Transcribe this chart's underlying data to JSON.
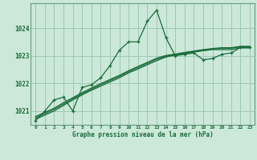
{
  "title": "Graphe pression niveau de la mer (hPa)",
  "background_color": "#cbe8d8",
  "grid_color": "#9dc9b4",
  "line_color": "#1a6b3a",
  "hours": [
    0,
    1,
    2,
    3,
    4,
    5,
    6,
    7,
    8,
    9,
    10,
    11,
    12,
    13,
    14,
    15,
    16,
    17,
    18,
    19,
    20,
    21,
    22,
    23
  ],
  "line_volatile": [
    1020.65,
    1021.0,
    1021.4,
    1021.5,
    1021.0,
    1021.85,
    1021.95,
    1022.2,
    1022.65,
    1023.2,
    1023.5,
    1023.5,
    1024.25,
    1024.65,
    1023.65,
    1023.0,
    1023.05,
    1023.1,
    1022.85,
    1022.9,
    1023.05,
    1023.1,
    1023.3,
    1023.3
  ],
  "line_trend1": [
    1020.7,
    1020.85,
    1021.0,
    1021.2,
    1021.4,
    1021.58,
    1021.75,
    1021.9,
    1022.05,
    1022.2,
    1022.38,
    1022.52,
    1022.67,
    1022.82,
    1022.95,
    1023.02,
    1023.08,
    1023.13,
    1023.18,
    1023.22,
    1023.22,
    1023.22,
    1023.28,
    1023.28
  ],
  "line_trend2": [
    1020.75,
    1020.9,
    1021.06,
    1021.25,
    1021.44,
    1021.62,
    1021.79,
    1021.95,
    1022.1,
    1022.25,
    1022.42,
    1022.57,
    1022.72,
    1022.87,
    1022.98,
    1023.04,
    1023.1,
    1023.15,
    1023.2,
    1023.24,
    1023.27,
    1023.27,
    1023.32,
    1023.32
  ],
  "line_trend3": [
    1020.8,
    1020.95,
    1021.1,
    1021.3,
    1021.48,
    1021.66,
    1021.83,
    1021.99,
    1022.14,
    1022.29,
    1022.46,
    1022.61,
    1022.76,
    1022.91,
    1023.01,
    1023.06,
    1023.12,
    1023.17,
    1023.22,
    1023.26,
    1023.29,
    1023.29,
    1023.34,
    1023.34
  ],
  "x_labels": [
    "0",
    "1",
    "2",
    "3",
    "4",
    "5",
    "6",
    "7",
    "8",
    "9",
    "10",
    "11",
    "12",
    "13",
    "14",
    "15",
    "16",
    "17",
    "18",
    "19",
    "20",
    "21",
    "22",
    "23"
  ],
  "ylim": [
    1020.5,
    1024.9
  ],
  "yticks": [
    1021,
    1022,
    1023,
    1024
  ]
}
